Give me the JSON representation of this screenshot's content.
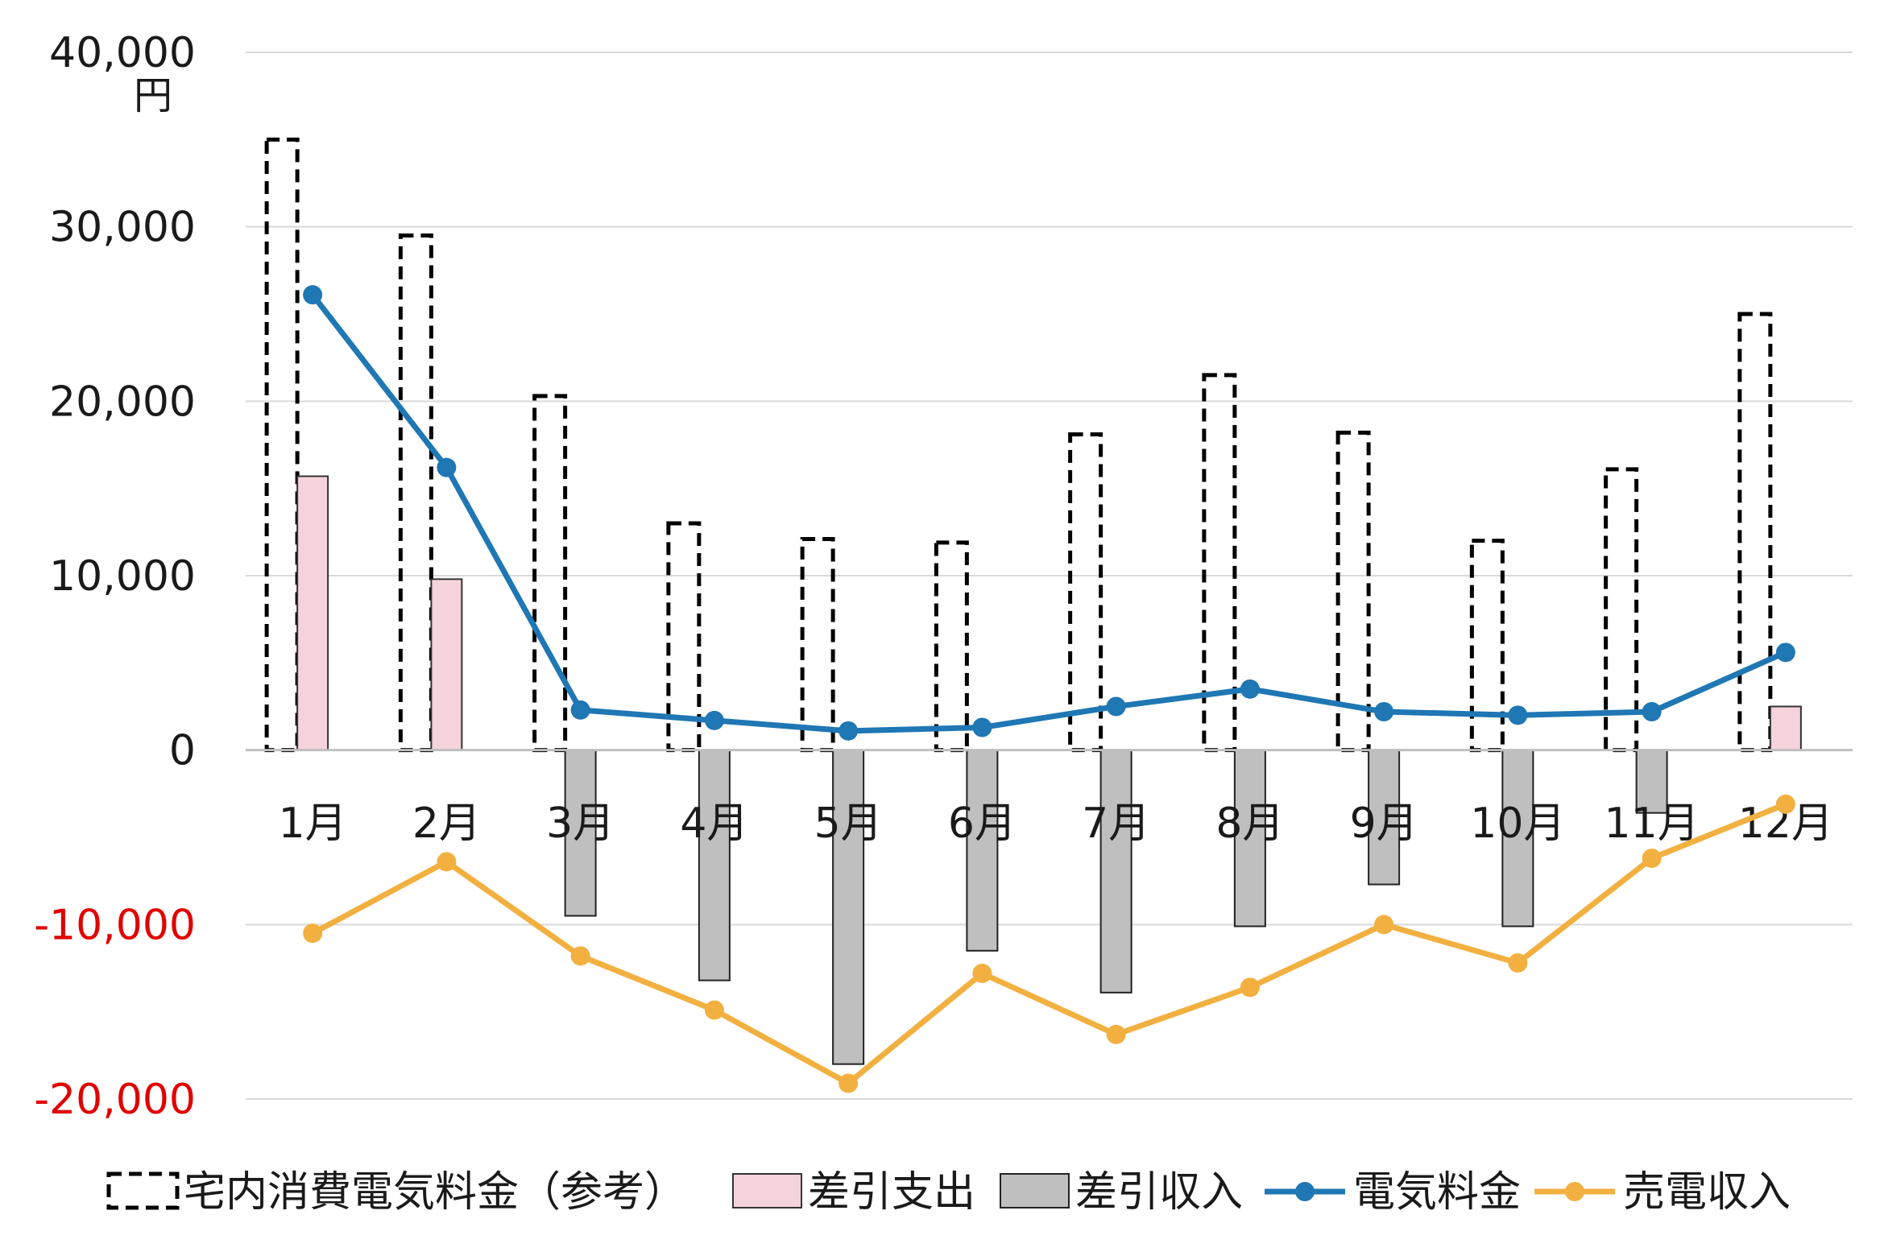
{
  "chart_data": {
    "type": "bar",
    "unit_label": "円",
    "categories": [
      "1月",
      "2月",
      "3月",
      "4月",
      "5月",
      "6月",
      "7月",
      "8月",
      "9月",
      "10月",
      "11月",
      "12月"
    ],
    "ylim": [
      -20000,
      40000
    ],
    "yticks": [
      {
        "value": 40000,
        "label": "40,000",
        "color": "#1a1a1a"
      },
      {
        "value": 30000,
        "label": "30,000",
        "color": "#1a1a1a"
      },
      {
        "value": 20000,
        "label": "20,000",
        "color": "#1a1a1a"
      },
      {
        "value": 10000,
        "label": "10,000",
        "color": "#1a1a1a"
      },
      {
        "value": 0,
        "label": "0",
        "color": "#1a1a1a"
      },
      {
        "value": -10000,
        "label": "-10,000",
        "color": "#e00000"
      },
      {
        "value": -20000,
        "label": "-20,000",
        "color": "#e00000"
      }
    ],
    "grid": true,
    "legend_position": "bottom",
    "series": [
      {
        "name": "宅内消費電気料金（参考）",
        "kind": "bar",
        "style": "dashed-outline",
        "color": "#000000",
        "values": [
          35000,
          29500,
          20300,
          13000,
          12100,
          11900,
          18100,
          21500,
          18200,
          12000,
          16100,
          25000
        ]
      },
      {
        "name": "差引支出",
        "kind": "bar",
        "color": "#f4d3da",
        "values": [
          15700,
          9800,
          0,
          0,
          0,
          0,
          0,
          0,
          0,
          0,
          0,
          2500
        ]
      },
      {
        "name": "差引収入",
        "kind": "bar",
        "color": "#bfbfbf",
        "values": [
          0,
          0,
          -9500,
          -13200,
          -18000,
          -11500,
          -13900,
          -10100,
          -7700,
          -10100,
          -3600,
          0
        ]
      },
      {
        "name": "電気料金",
        "kind": "line",
        "color": "#1f77b4",
        "values": [
          26100,
          16200,
          2300,
          1700,
          1100,
          1300,
          2500,
          3500,
          2200,
          2000,
          2200,
          5600
        ]
      },
      {
        "name": "売電収入",
        "kind": "line",
        "color": "#f2b040",
        "values": [
          -10500,
          -6400,
          -11800,
          -14900,
          -19100,
          -12800,
          -16300,
          -13600,
          -10000,
          -12200,
          -6200,
          -3100
        ]
      }
    ]
  }
}
